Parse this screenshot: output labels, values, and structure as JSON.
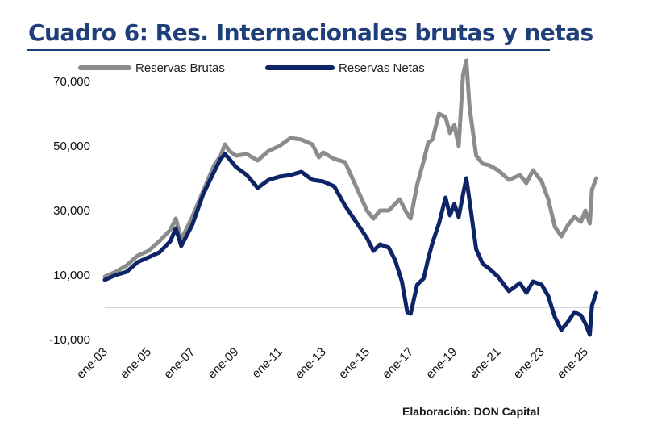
{
  "page": {
    "title": "Cuadro 6: Res. Internacionales brutas y netas",
    "credit": "Elaboración: DON Capital"
  },
  "chart_data": {
    "type": "line",
    "title": "Cuadro 6: Res. Internacionales brutas y netas",
    "xlabel": "",
    "ylabel": "",
    "ylim": [
      -10000,
      75000
    ],
    "yticks": [
      70000,
      50000,
      30000,
      10000,
      -10000
    ],
    "ytick_labels": [
      "70,000",
      "50,000",
      "30,000",
      "10,000",
      "-10,000"
    ],
    "xlim": [
      2003,
      2025.7
    ],
    "xticks": [
      2003,
      2005,
      2007,
      2009,
      2011,
      2013,
      2015,
      2017,
      2019,
      2021,
      2023,
      2025
    ],
    "xtick_labels": [
      "ene-03",
      "ene-05",
      "ene-07",
      "ene-09",
      "ene-11",
      "ene-13",
      "ene-15",
      "ene-17",
      "ene-19",
      "ene-21",
      "ene-23",
      "ene-25"
    ],
    "legend_position": "top-left",
    "reference_line": 0,
    "series": [
      {
        "name": "Reservas Brutas",
        "color": "#8c8c8c",
        "points": [
          [
            2003,
            9500
          ],
          [
            2003.5,
            11000
          ],
          [
            2004,
            13000
          ],
          [
            2004.5,
            16000
          ],
          [
            2005,
            17500
          ],
          [
            2005.5,
            20500
          ],
          [
            2006,
            24000
          ],
          [
            2006.25,
            27500
          ],
          [
            2006.5,
            21000
          ],
          [
            2007,
            28000
          ],
          [
            2007.5,
            36000
          ],
          [
            2008,
            44000
          ],
          [
            2008.3,
            47000
          ],
          [
            2008.5,
            50500
          ],
          [
            2008.7,
            48500
          ],
          [
            2009,
            47000
          ],
          [
            2009.5,
            47500
          ],
          [
            2010,
            45500
          ],
          [
            2010.5,
            48500
          ],
          [
            2011,
            50000
          ],
          [
            2011.5,
            52500
          ],
          [
            2012,
            52000
          ],
          [
            2012.5,
            50500
          ],
          [
            2012.8,
            46500
          ],
          [
            2013,
            48000
          ],
          [
            2013.5,
            46000
          ],
          [
            2014,
            45000
          ],
          [
            2014.5,
            37500
          ],
          [
            2015,
            30000
          ],
          [
            2015.3,
            27500
          ],
          [
            2015.6,
            30000
          ],
          [
            2016,
            30000
          ],
          [
            2016.5,
            33500
          ],
          [
            2016.8,
            29500
          ],
          [
            2017,
            27500
          ],
          [
            2017.3,
            38000
          ],
          [
            2017.6,
            45500
          ],
          [
            2017.8,
            51000
          ],
          [
            2018,
            52000
          ],
          [
            2018.3,
            60000
          ],
          [
            2018.6,
            59000
          ],
          [
            2018.8,
            54000
          ],
          [
            2019,
            56500
          ],
          [
            2019.2,
            50000
          ],
          [
            2019.4,
            72000
          ],
          [
            2019.55,
            76500
          ],
          [
            2019.7,
            62000
          ],
          [
            2020,
            47000
          ],
          [
            2020.3,
            44500
          ],
          [
            2020.6,
            44000
          ],
          [
            2021,
            42500
          ],
          [
            2021.5,
            39500
          ],
          [
            2022,
            41000
          ],
          [
            2022.3,
            38500
          ],
          [
            2022.6,
            42500
          ],
          [
            2023,
            39000
          ],
          [
            2023.3,
            33500
          ],
          [
            2023.6,
            25000
          ],
          [
            2023.9,
            22000
          ],
          [
            2024.2,
            25500
          ],
          [
            2024.5,
            28000
          ],
          [
            2024.8,
            26500
          ],
          [
            2025,
            30000
          ],
          [
            2025.2,
            26000
          ],
          [
            2025.3,
            36500
          ],
          [
            2025.5,
            40000
          ]
        ]
      },
      {
        "name": "Reservas Netas",
        "color": "#0e2466",
        "points": [
          [
            2003,
            8500
          ],
          [
            2003.5,
            10000
          ],
          [
            2004,
            11000
          ],
          [
            2004.5,
            14000
          ],
          [
            2005,
            15500
          ],
          [
            2005.5,
            17000
          ],
          [
            2006,
            20500
          ],
          [
            2006.25,
            24500
          ],
          [
            2006.5,
            19000
          ],
          [
            2007,
            25500
          ],
          [
            2007.5,
            35000
          ],
          [
            2008,
            42000
          ],
          [
            2008.3,
            46000
          ],
          [
            2008.5,
            47500
          ],
          [
            2008.7,
            46000
          ],
          [
            2009,
            43500
          ],
          [
            2009.5,
            41000
          ],
          [
            2010,
            37000
          ],
          [
            2010.5,
            39500
          ],
          [
            2011,
            40500
          ],
          [
            2011.5,
            41000
          ],
          [
            2012,
            42000
          ],
          [
            2012.5,
            39500
          ],
          [
            2013,
            39000
          ],
          [
            2013.5,
            37500
          ],
          [
            2014,
            31500
          ],
          [
            2014.5,
            26500
          ],
          [
            2015,
            21500
          ],
          [
            2015.3,
            17500
          ],
          [
            2015.6,
            19500
          ],
          [
            2016,
            18500
          ],
          [
            2016.3,
            14500
          ],
          [
            2016.6,
            8000
          ],
          [
            2016.85,
            -1500
          ],
          [
            2017,
            -2000
          ],
          [
            2017.3,
            7000
          ],
          [
            2017.6,
            9000
          ],
          [
            2017.8,
            15000
          ],
          [
            2018,
            20000
          ],
          [
            2018.3,
            26000
          ],
          [
            2018.6,
            34000
          ],
          [
            2018.8,
            28500
          ],
          [
            2019,
            32000
          ],
          [
            2019.2,
            28000
          ],
          [
            2019.4,
            35000
          ],
          [
            2019.55,
            40000
          ],
          [
            2019.7,
            33000
          ],
          [
            2020,
            18000
          ],
          [
            2020.3,
            13500
          ],
          [
            2020.6,
            12000
          ],
          [
            2021,
            9500
          ],
          [
            2021.5,
            5000
          ],
          [
            2022,
            7500
          ],
          [
            2022.3,
            4500
          ],
          [
            2022.6,
            8000
          ],
          [
            2023,
            7000
          ],
          [
            2023.3,
            3500
          ],
          [
            2023.6,
            -3000
          ],
          [
            2023.9,
            -7000
          ],
          [
            2024.2,
            -4500
          ],
          [
            2024.5,
            -1500
          ],
          [
            2024.8,
            -2500
          ],
          [
            2025,
            -5000
          ],
          [
            2025.2,
            -8500
          ],
          [
            2025.3,
            500
          ],
          [
            2025.5,
            4500
          ]
        ]
      }
    ]
  }
}
